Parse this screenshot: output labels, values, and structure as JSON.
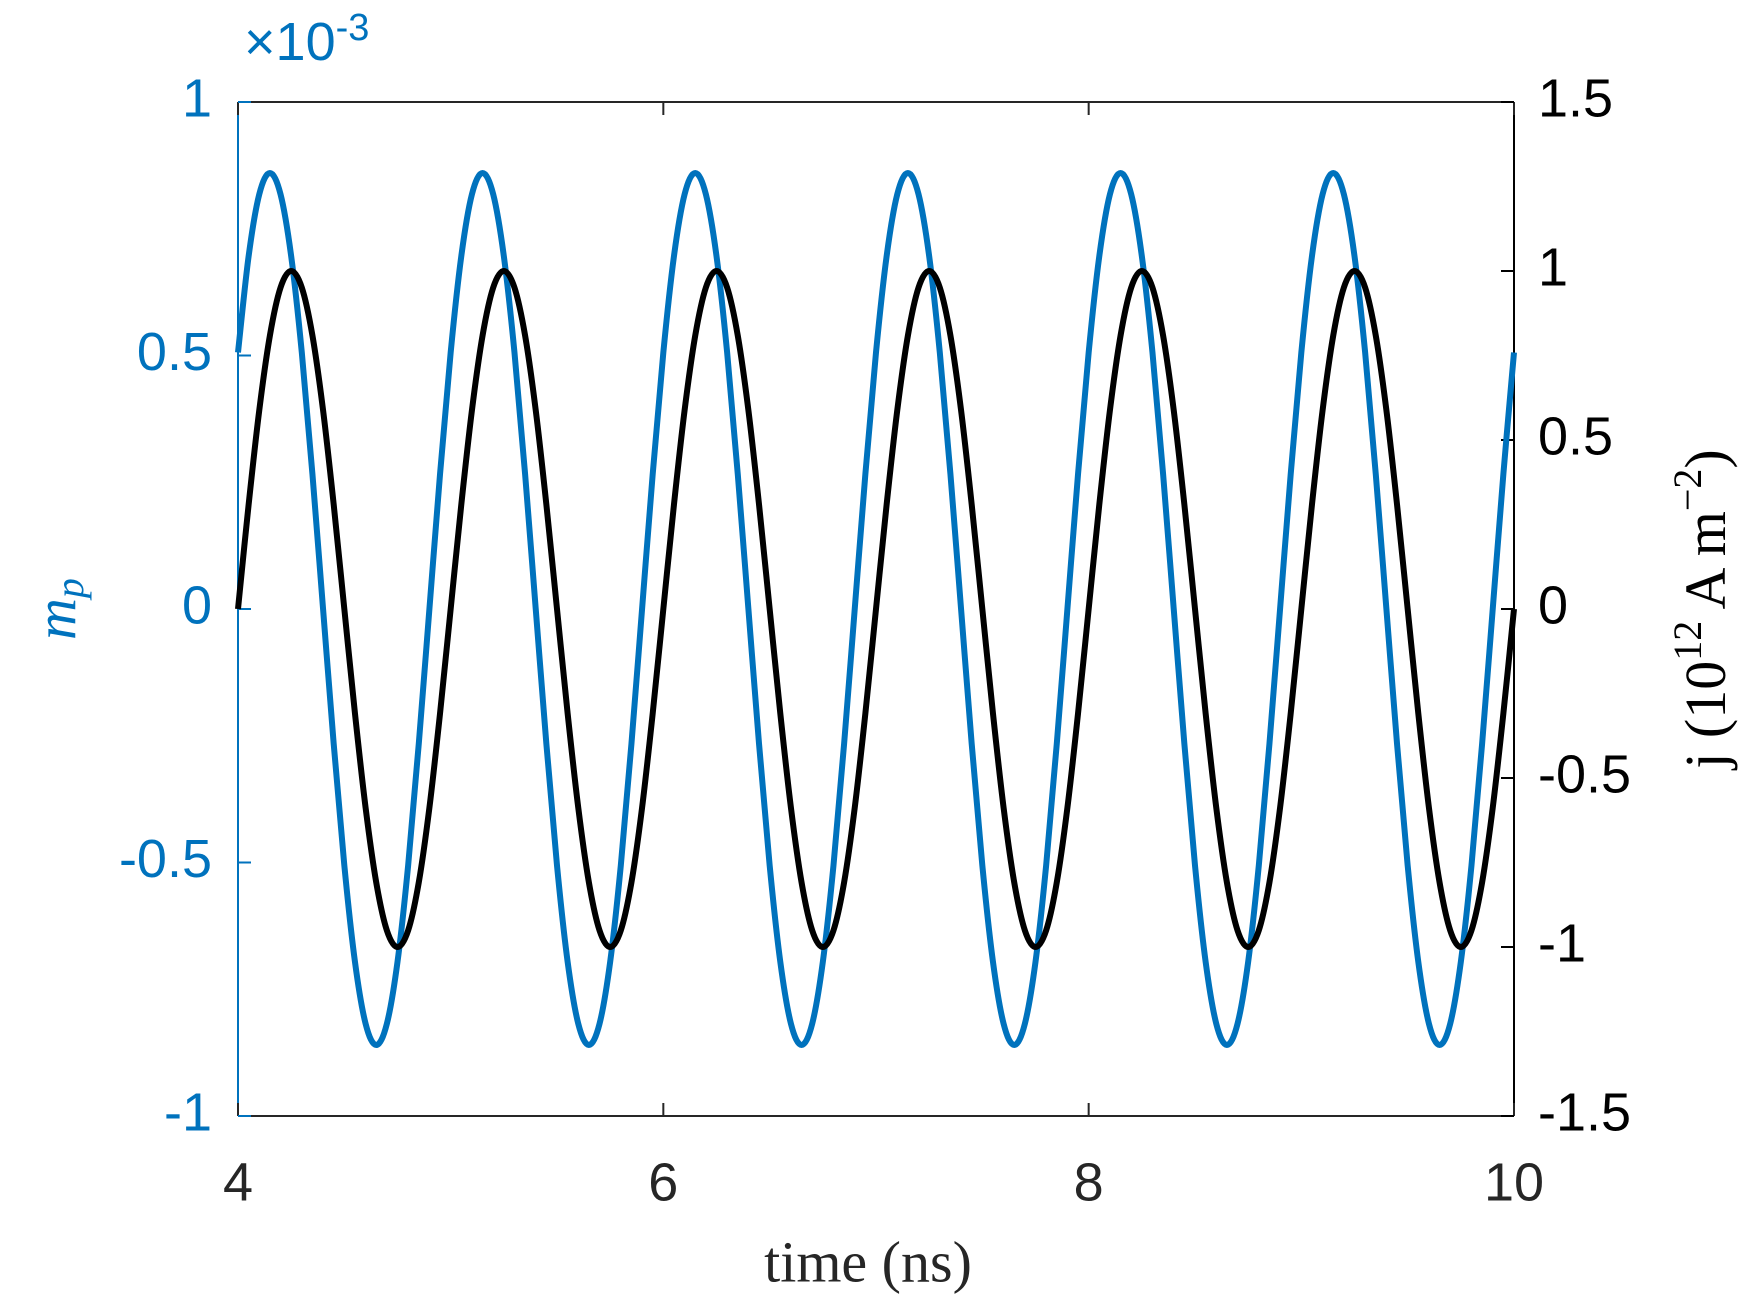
{
  "chart_data": {
    "type": "line",
    "xlabel": "time (ns)",
    "ylabel": [
      "m",
      "p"
    ],
    "y2label": [
      "j (10",
      "12",
      " A m",
      "−2",
      ")"
    ],
    "y_exponent": [
      "×10",
      "-3"
    ],
    "xlim": [
      4,
      10
    ],
    "xticks": [
      4,
      6,
      8,
      10
    ],
    "ylim": [
      -1,
      1
    ],
    "yticks": [
      -1,
      -0.5,
      0,
      0.5,
      1
    ],
    "y2lim": [
      -1.5,
      1.5
    ],
    "y2ticks": [
      -1.5,
      -1,
      -0.5,
      0,
      0.5,
      1,
      1.5
    ],
    "grid": false,
    "y_color": "#0072bd",
    "y2_color": "#000000",
    "x": [
      4,
      4.05,
      4.1,
      4.15,
      4.2,
      4.25,
      4.3,
      4.35,
      4.4,
      4.45,
      4.5,
      4.55,
      4.6,
      4.65,
      4.7,
      4.75,
      4.8,
      4.85,
      4.9,
      4.95,
      5,
      5.05,
      5.1,
      5.15,
      5.2,
      5.25,
      5.3,
      5.35,
      5.4,
      5.45,
      5.5,
      5.55,
      5.6,
      5.65,
      5.7,
      5.75,
      5.8,
      5.85,
      5.9,
      5.95,
      6,
      6.05,
      6.1,
      6.15,
      6.2,
      6.25,
      6.3,
      6.35,
      6.4,
      6.45,
      6.5,
      6.55,
      6.6,
      6.65,
      6.7,
      6.75,
      6.8,
      6.85,
      6.9,
      6.95,
      7,
      7.05,
      7.1,
      7.15,
      7.2,
      7.25,
      7.3,
      7.35,
      7.4,
      7.45,
      7.5,
      7.55,
      7.6,
      7.65,
      7.7,
      7.75,
      7.8,
      7.85,
      7.9,
      7.95,
      8,
      8.05,
      8.1,
      8.15,
      8.2,
      8.25,
      8.3,
      8.35,
      8.4,
      8.45,
      8.5,
      8.55,
      8.6,
      8.65,
      8.7,
      8.75,
      8.8,
      8.85,
      8.9,
      8.95,
      9,
      9.05,
      9.1,
      9.15,
      9.2,
      9.25,
      9.3,
      9.35,
      9.4,
      9.45,
      9.5,
      9.55,
      9.6,
      9.65,
      9.7,
      9.75,
      9.8,
      9.85,
      9.9,
      9.95,
      10
    ],
    "series": [
      {
        "color": "#0072bd",
        "axis": "y",
        "values": [
          0.506,
          0.696,
          0.818,
          0.86,
          0.818,
          0.696,
          0.506,
          0.266,
          0,
          -0.266,
          -0.506,
          -0.696,
          -0.818,
          -0.86,
          -0.818,
          -0.696,
          -0.506,
          -0.266,
          0,
          0.266,
          0.506,
          0.696,
          0.818,
          0.86,
          0.818,
          0.696,
          0.506,
          0.266,
          0,
          -0.266,
          -0.506,
          -0.696,
          -0.818,
          -0.86,
          -0.818,
          -0.696,
          -0.506,
          -0.266,
          0,
          0.266,
          0.506,
          0.696,
          0.818,
          0.86,
          0.818,
          0.696,
          0.506,
          0.266,
          0,
          -0.266,
          -0.506,
          -0.696,
          -0.818,
          -0.86,
          -0.818,
          -0.696,
          -0.506,
          -0.266,
          0,
          0.266,
          0.506,
          0.696,
          0.818,
          0.86,
          0.818,
          0.696,
          0.506,
          0.266,
          0,
          -0.266,
          -0.506,
          -0.696,
          -0.818,
          -0.86,
          -0.818,
          -0.696,
          -0.506,
          -0.266,
          0,
          0.266,
          0.506,
          0.696,
          0.818,
          0.86,
          0.818,
          0.696,
          0.506,
          0.266,
          0,
          -0.266,
          -0.506,
          -0.696,
          -0.818,
          -0.86,
          -0.818,
          -0.696,
          -0.506,
          -0.266,
          0,
          0.266,
          0.506,
          0.696,
          0.818,
          0.86,
          0.818,
          0.696,
          0.506,
          0.266,
          0,
          -0.266,
          -0.506,
          -0.696,
          -0.818,
          -0.86,
          -0.818,
          -0.696,
          -0.506,
          -0.266,
          0,
          0.266,
          0.506
        ]
      },
      {
        "color": "#000000",
        "axis": "y2",
        "values": [
          0,
          0.309,
          0.588,
          0.809,
          0.951,
          1,
          0.951,
          0.809,
          0.588,
          0.309,
          0,
          -0.309,
          -0.588,
          -0.809,
          -0.951,
          -1,
          -0.951,
          -0.809,
          -0.588,
          -0.309,
          0,
          0.309,
          0.588,
          0.809,
          0.951,
          1,
          0.951,
          0.809,
          0.588,
          0.309,
          0,
          -0.309,
          -0.588,
          -0.809,
          -0.951,
          -1,
          -0.951,
          -0.809,
          -0.588,
          -0.309,
          0,
          0.309,
          0.588,
          0.809,
          0.951,
          1,
          0.951,
          0.809,
          0.588,
          0.309,
          0,
          -0.309,
          -0.588,
          -0.809,
          -0.951,
          -1,
          -0.951,
          -0.809,
          -0.588,
          -0.309,
          0,
          0.309,
          0.588,
          0.809,
          0.951,
          1,
          0.951,
          0.809,
          0.588,
          0.309,
          0,
          -0.309,
          -0.588,
          -0.809,
          -0.951,
          -1,
          -0.951,
          -0.809,
          -0.588,
          -0.309,
          0,
          0.309,
          0.588,
          0.809,
          0.951,
          1,
          0.951,
          0.809,
          0.588,
          0.309,
          0,
          -0.309,
          -0.588,
          -0.809,
          -0.951,
          -1,
          -0.951,
          -0.809,
          -0.588,
          -0.309,
          0,
          0.309,
          0.588,
          0.809,
          0.951,
          1,
          0.951,
          0.809,
          0.588,
          0.309,
          0,
          -0.309,
          -0.588,
          -0.809,
          -0.951,
          -1,
          -0.951,
          -0.809,
          -0.588,
          -0.309,
          0
        ]
      }
    ]
  }
}
